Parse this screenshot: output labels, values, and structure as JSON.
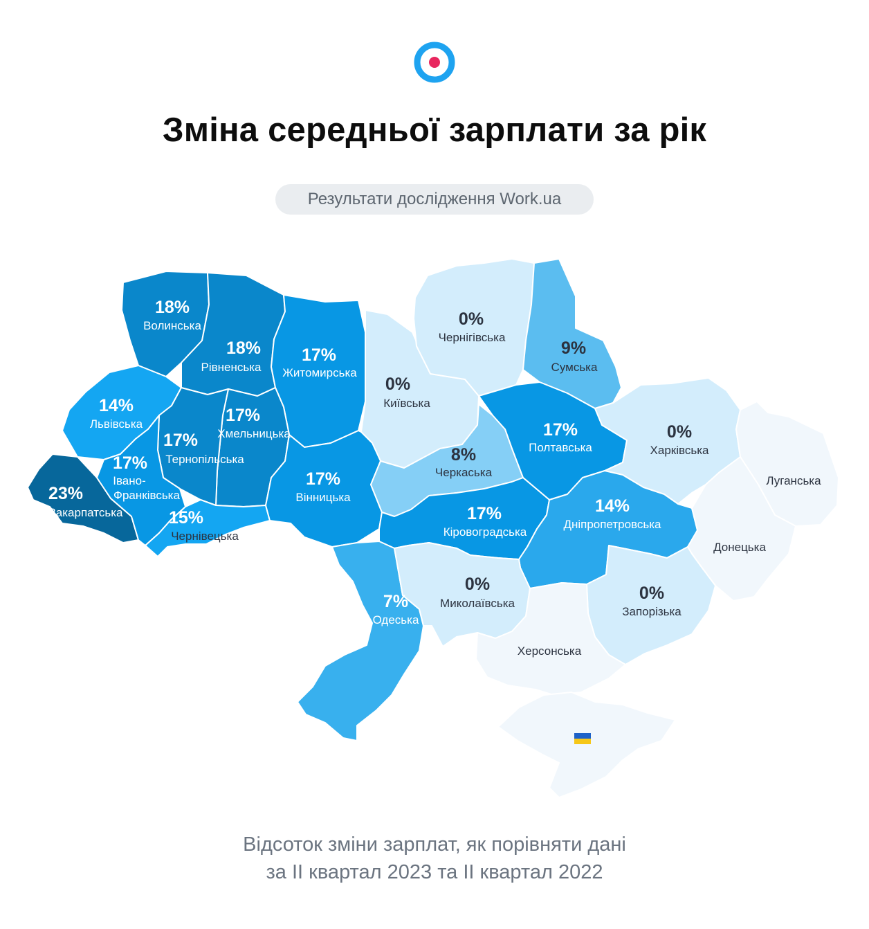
{
  "header": {
    "title": "Зміна середньої зарплати за рік",
    "subtitle": "Результати дослідження Work.ua"
  },
  "colors": {
    "logo_ring": "#1ea3f0",
    "logo_dot": "#e8265e",
    "scale_23": "#07679b",
    "scale_18": "#0a87cb",
    "scale_17_west": "#0a87cb",
    "scale_17": "#0897e4",
    "scale_15": "#14a6f2",
    "scale_14": "#2aa8ec",
    "scale_9": "#5bbdf0",
    "scale_8": "#85cff6",
    "scale_7": "#38b0ee",
    "scale_0": "#d3edfc",
    "scale_na": "#f1f7fc",
    "dark_text": "#2c3340"
  },
  "map": {
    "regions": [
      {
        "name": "Волинська",
        "value": "18%"
      },
      {
        "name": "Рівненська",
        "value": "18%"
      },
      {
        "name": "Житомирська",
        "value": "17%"
      },
      {
        "name": "Київська",
        "value": "0%"
      },
      {
        "name": "Чернігівська",
        "value": "0%"
      },
      {
        "name": "Сумська",
        "value": "9%"
      },
      {
        "name": "Львівська",
        "value": "14%"
      },
      {
        "name": "Хмельницька",
        "value": "17%"
      },
      {
        "name": "Тернопільська",
        "value": "17%"
      },
      {
        "name": "Закарпатська",
        "value": "23%"
      },
      {
        "name": "Івано-Франківська",
        "name_line1": "Івано-",
        "name_line2": "Франківська",
        "value": "17%"
      },
      {
        "name": "Чернівецька",
        "value": "15%"
      },
      {
        "name": "Вінницька",
        "value": "17%"
      },
      {
        "name": "Черкаська",
        "value": "8%"
      },
      {
        "name": "Полтавська",
        "value": "17%"
      },
      {
        "name": "Харківська",
        "value": "0%"
      },
      {
        "name": "Луганська",
        "value": ""
      },
      {
        "name": "Кіровоградська",
        "value": "17%"
      },
      {
        "name": "Дніпропетровська",
        "value": "14%"
      },
      {
        "name": "Донецька",
        "value": ""
      },
      {
        "name": "Одеська",
        "value": "7%"
      },
      {
        "name": "Миколаївська",
        "value": "0%"
      },
      {
        "name": "Запорізька",
        "value": "0%"
      },
      {
        "name": "Херсонська",
        "value": ""
      },
      {
        "name": "Крим",
        "value": "",
        "flag": "ukraine-flag-icon"
      }
    ]
  },
  "footer": {
    "line1": "Відсоток зміни зарплат, як порівняти дані",
    "line2": "за II квартал 2023 та II квартал 2022"
  }
}
